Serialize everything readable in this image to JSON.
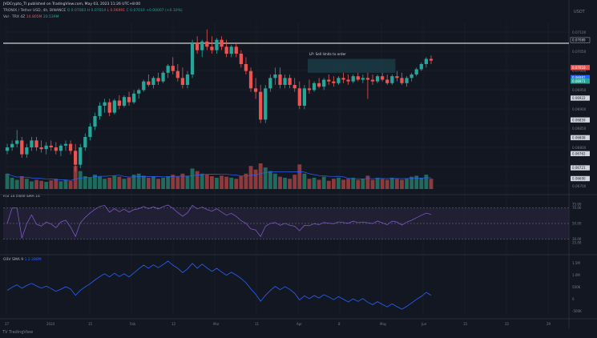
{
  "header": {
    "meta": "JVDCrypto_TI published on TradingView.com, May 03, 2023 11:26 UTC+8:00",
    "symbol": "TRONIX / Tether USD, 4h, BINANCE",
    "symbol_o": "O 0.07003",
    "symbol_h": "H 0.07014",
    "symbol_l": "L 0.06991",
    "symbol_c": "C 0.07010",
    "symbol_chg": "+0.00007 (+0.10%)",
    "vol_label": "Vol · TRX 4Z",
    "vol_v1": "14.805M",
    "vol_v2": "20.539M",
    "currency": "USDT"
  },
  "rsi_label": "RSI 14 close SMA 14",
  "obv_label": "OBV SMA 9",
  "obv_value": "1.2.288M",
  "footer": "TV TradingView",
  "colors": {
    "bg": "#131722",
    "up": "#26a69a",
    "down": "#ef5350",
    "line": "#2962ff",
    "grid": "#1f232e",
    "text": "#787b86"
  },
  "chart_data": {
    "type": "candlestick",
    "title": "TRONIX / Tether USD, 4h, BINANCE",
    "price_axis_ticks": [
      "0.07100",
      "0.07050",
      "0.07000",
      "0.06950",
      "0.06900",
      "0.06850",
      "0.06800",
      "0.06750",
      "0.06700"
    ],
    "ylim": [
      0.0666,
      0.0714
    ],
    "horizontal_line": 0.0708,
    "price_tags": [
      "0.07089",
      "0.07010",
      "0.06981",
      "0.06971",
      "0.06922",
      "0.06859",
      "0.06808",
      "0.06762",
      "0.06721",
      "0.06690"
    ],
    "annotation": "LP: Sell limits to order",
    "x_tick_labels": [
      "27",
      "2024",
      "15",
      "Feb",
      "12",
      "Mar",
      "11",
      "Apr",
      "8",
      "May",
      "Jun",
      "15",
      "22",
      "29"
    ],
    "candles_ohlc": [
      [
        0.0677,
        0.0679,
        0.0676,
        0.0678
      ],
      [
        0.0678,
        0.068,
        0.0677,
        0.0679
      ],
      [
        0.0679,
        0.0683,
        0.0678,
        0.068
      ],
      [
        0.068,
        0.0681,
        0.0675,
        0.0676
      ],
      [
        0.0676,
        0.0679,
        0.0675,
        0.0678
      ],
      [
        0.0678,
        0.0681,
        0.0677,
        0.068
      ],
      [
        0.068,
        0.0681,
        0.0677,
        0.0678
      ],
      [
        0.0678,
        0.068,
        0.06765,
        0.06775
      ],
      [
        0.06775,
        0.06795,
        0.0676,
        0.06785
      ],
      [
        0.06785,
        0.068,
        0.0677,
        0.0678
      ],
      [
        0.0678,
        0.06795,
        0.0676,
        0.0677
      ],
      [
        0.0677,
        0.0679,
        0.06755,
        0.06785
      ],
      [
        0.06785,
        0.068,
        0.0677,
        0.0679
      ],
      [
        0.0679,
        0.068,
        0.0676,
        0.0677
      ],
      [
        0.0677,
        0.0679,
        0.0671,
        0.0673
      ],
      [
        0.0673,
        0.0679,
        0.0672,
        0.0678
      ],
      [
        0.0678,
        0.0682,
        0.0677,
        0.0681
      ],
      [
        0.0681,
        0.0685,
        0.068,
        0.0684
      ],
      [
        0.0684,
        0.0688,
        0.0683,
        0.0687
      ],
      [
        0.0687,
        0.0691,
        0.0686,
        0.069
      ],
      [
        0.069,
        0.0692,
        0.0688,
        0.0691
      ],
      [
        0.0691,
        0.0692,
        0.0687,
        0.0688
      ],
      [
        0.0688,
        0.0692,
        0.06875,
        0.06915
      ],
      [
        0.06915,
        0.0693,
        0.0689,
        0.069
      ],
      [
        0.069,
        0.0693,
        0.06895,
        0.06925
      ],
      [
        0.06925,
        0.0694,
        0.069,
        0.0691
      ],
      [
        0.0691,
        0.06945,
        0.06905,
        0.06935
      ],
      [
        0.06935,
        0.0695,
        0.0692,
        0.06945
      ],
      [
        0.06945,
        0.06975,
        0.0694,
        0.0697
      ],
      [
        0.0697,
        0.0699,
        0.06955,
        0.0696
      ],
      [
        0.0696,
        0.06985,
        0.0695,
        0.0698
      ],
      [
        0.0698,
        0.06995,
        0.0696,
        0.0697
      ],
      [
        0.0697,
        0.07,
        0.06965,
        0.06995
      ],
      [
        0.06995,
        0.0702,
        0.0698,
        0.07015
      ],
      [
        0.07015,
        0.0704,
        0.0699,
        0.07
      ],
      [
        0.07,
        0.0702,
        0.0697,
        0.0698
      ],
      [
        0.0698,
        0.0701,
        0.0695,
        0.0696
      ],
      [
        0.0696,
        0.07,
        0.0695,
        0.0699
      ],
      [
        0.0699,
        0.0709,
        0.0698,
        0.0708
      ],
      [
        0.0708,
        0.071,
        0.0705,
        0.0706
      ],
      [
        0.0706,
        0.0709,
        0.0704,
        0.07085
      ],
      [
        0.07085,
        0.0712,
        0.0706,
        0.0707
      ],
      [
        0.0707,
        0.071,
        0.0705,
        0.0706
      ],
      [
        0.0706,
        0.07095,
        0.0705,
        0.0709
      ],
      [
        0.0709,
        0.071,
        0.0706,
        0.0707
      ],
      [
        0.0707,
        0.0709,
        0.0704,
        0.0705
      ],
      [
        0.0705,
        0.07075,
        0.0704,
        0.0707
      ],
      [
        0.0707,
        0.0708,
        0.0704,
        0.0705
      ],
      [
        0.0705,
        0.0706,
        0.0701,
        0.0702
      ],
      [
        0.0702,
        0.0704,
        0.0699,
        0.07
      ],
      [
        0.07,
        0.0701,
        0.0694,
        0.0695
      ],
      [
        0.0695,
        0.0698,
        0.0692,
        0.0694
      ],
      [
        0.0694,
        0.0696,
        0.0685,
        0.0686
      ],
      [
        0.0686,
        0.0696,
        0.0685,
        0.0695
      ],
      [
        0.0695,
        0.0699,
        0.0694,
        0.0698
      ],
      [
        0.0698,
        0.0701,
        0.0696,
        0.0699
      ],
      [
        0.0699,
        0.0701,
        0.0695,
        0.0696
      ],
      [
        0.0696,
        0.0699,
        0.0695,
        0.0698
      ],
      [
        0.0698,
        0.0699,
        0.0695,
        0.0696
      ],
      [
        0.0696,
        0.0698,
        0.0694,
        0.0695
      ],
      [
        0.0695,
        0.0697,
        0.0689,
        0.069
      ],
      [
        0.069,
        0.0696,
        0.0689,
        0.0695
      ],
      [
        0.0695,
        0.06975,
        0.06935,
        0.06945
      ],
      [
        0.06945,
        0.0697,
        0.0694,
        0.06965
      ],
      [
        0.06965,
        0.0698,
        0.0695,
        0.06955
      ],
      [
        0.06955,
        0.0698,
        0.06945,
        0.06975
      ],
      [
        0.06975,
        0.0699,
        0.0696,
        0.0697
      ],
      [
        0.0697,
        0.06985,
        0.06955,
        0.06965
      ],
      [
        0.06965,
        0.06985,
        0.0696,
        0.0698
      ],
      [
        0.0698,
        0.06995,
        0.06965,
        0.06975
      ],
      [
        0.06975,
        0.0699,
        0.0696,
        0.0697
      ],
      [
        0.0697,
        0.0699,
        0.06965,
        0.06985
      ],
      [
        0.06985,
        0.06995,
        0.0697,
        0.06975
      ],
      [
        0.06975,
        0.0699,
        0.06965,
        0.0698
      ],
      [
        0.0698,
        0.06995,
        0.0692,
        0.06975
      ],
      [
        0.06975,
        0.0699,
        0.0696,
        0.0697
      ],
      [
        0.0697,
        0.0699,
        0.06965,
        0.06985
      ],
      [
        0.06985,
        0.06995,
        0.0697,
        0.06975
      ],
      [
        0.06975,
        0.0699,
        0.0696,
        0.06965
      ],
      [
        0.06965,
        0.0699,
        0.0696,
        0.06985
      ],
      [
        0.06985,
        0.07,
        0.0697,
        0.0698
      ],
      [
        0.0698,
        0.06995,
        0.0696,
        0.06965
      ],
      [
        0.06965,
        0.06985,
        0.06955,
        0.0698
      ],
      [
        0.0698,
        0.06995,
        0.0697,
        0.0699
      ],
      [
        0.0699,
        0.0701,
        0.06985,
        0.07005
      ],
      [
        0.07005,
        0.07025,
        0.07,
        0.0702
      ],
      [
        0.0702,
        0.0704,
        0.0701,
        0.07035
      ],
      [
        0.07035,
        0.07045,
        0.0702,
        0.0703
      ]
    ],
    "volume": [
      30,
      22,
      18,
      25,
      20,
      15,
      18,
      16,
      14,
      17,
      20,
      15,
      18,
      16,
      45,
      35,
      25,
      22,
      28,
      24,
      20,
      22,
      26,
      24,
      20,
      22,
      28,
      30,
      26,
      22,
      24,
      20,
      22,
      25,
      28,
      24,
      30,
      26,
      40,
      35,
      30,
      28,
      25,
      22,
      26,
      24,
      22,
      20,
      25,
      30,
      45,
      38,
      50,
      42,
      35,
      30,
      24,
      22,
      20,
      28,
      48,
      30,
      20,
      22,
      18,
      24,
      16,
      20,
      22,
      18,
      20,
      22,
      18,
      20,
      26,
      18,
      22,
      20,
      18,
      22,
      20,
      18,
      20,
      24,
      26,
      22,
      28,
      20
    ],
    "rsi": {
      "ylim": [
        20,
        80
      ],
      "band": [
        30,
        70
      ],
      "mid": 50,
      "tick_labels": [
        "75.00",
        "70.00",
        "50.00",
        "30.00",
        "25.00"
      ]
    },
    "obv": {
      "tick_labels": [
        "1.5M",
        "1.0M",
        "500K",
        "0",
        "-500K"
      ]
    }
  }
}
